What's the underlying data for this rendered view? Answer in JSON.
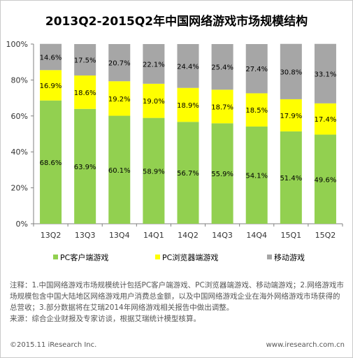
{
  "title": "2013Q2-2015Q2年中国网络游戏市场规模结构",
  "chart_data": {
    "type": "bar",
    "stacked": true,
    "title": "2013Q2-2015Q2年中国网络游戏市场规模结构",
    "categories": [
      "13Q2",
      "13Q3",
      "13Q4",
      "14Q1",
      "14Q2",
      "14Q3",
      "14Q4",
      "15Q1",
      "15Q2"
    ],
    "series": [
      {
        "name": "PC客户端游戏",
        "color": "#92d050",
        "values": [
          68.6,
          63.9,
          60.1,
          58.9,
          56.7,
          55.9,
          54.1,
          51.4,
          49.6
        ]
      },
      {
        "name": "PC浏览器端游戏",
        "color": "#ffff00",
        "values": [
          16.9,
          18.6,
          19.2,
          19.0,
          18.9,
          18.7,
          18.5,
          17.9,
          17.4
        ]
      },
      {
        "name": "移动游戏",
        "color": "#a6a6a6",
        "values": [
          14.6,
          17.5,
          20.7,
          22.1,
          24.4,
          25.4,
          27.4,
          30.8,
          33.1
        ]
      }
    ],
    "value_labels": [
      [
        "68.6%",
        "63.9%",
        "60.1%",
        "58.9%",
        "56.7%",
        "55.9%",
        "54.1%",
        "51.4%",
        "49.6%"
      ],
      [
        "16.9%",
        "18.6%",
        "19.2%",
        "19.0%",
        "18.9%",
        "18.7%",
        "18.5%",
        "17.9%",
        "17.4%"
      ],
      [
        "14.6%",
        "17.5%",
        "20.7%",
        "22.1%",
        "24.4%",
        "25.4%",
        "27.4%",
        "30.8%",
        "33.1%"
      ]
    ],
    "y_ticks": [
      "0%",
      "20%",
      "40%",
      "60%",
      "80%",
      "100%"
    ],
    "ylim": [
      0,
      100
    ],
    "grid": false,
    "legend_position": "bottom"
  },
  "note": {
    "line1": "注释：1.中国网络游戏市场规模统计包括PC客户端游戏、PC浏览器端游戏、移动端游戏；2.网络游戏市场规模包含中国大陆地区网络游戏用户消费总金额，以及中国网络游戏企业在海外网络游戏市场获得的总营收；3.部分数据将在艾瑞2014年网络游戏相关报告中做出调整。",
    "line2": "来源：综合企业财报及专家访谈，根据艾瑞统计模型核算。"
  },
  "footer": {
    "copyright": "©2015.11 iResearch Inc.",
    "website": "www.iresearch.com.cn"
  }
}
